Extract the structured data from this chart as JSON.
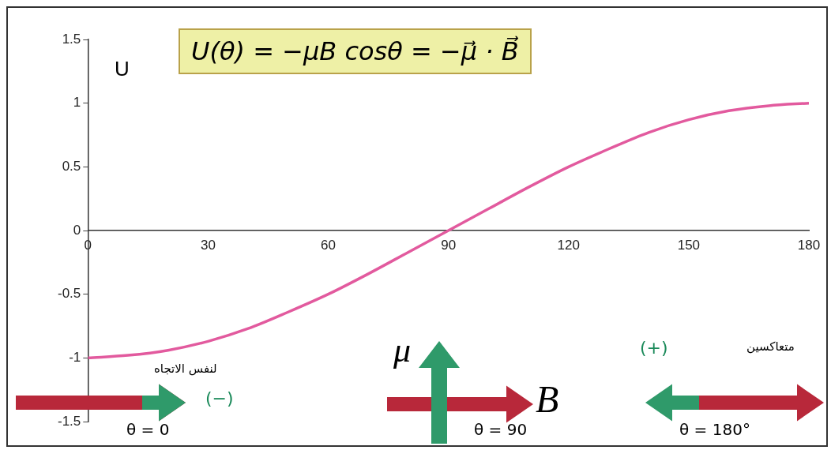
{
  "chart_data": {
    "type": "line",
    "ylabel": "U",
    "x": [
      0,
      10,
      20,
      30,
      40,
      50,
      60,
      70,
      80,
      90,
      100,
      110,
      120,
      130,
      140,
      150,
      160,
      170,
      180
    ],
    "series": [
      {
        "color": "#e25a9e",
        "values": [
          -1,
          -0.98,
          -0.94,
          -0.87,
          -0.77,
          -0.64,
          -0.5,
          -0.34,
          -0.17,
          0,
          0.17,
          0.34,
          0.5,
          0.64,
          0.77,
          0.87,
          0.94,
          0.98,
          1
        ]
      }
    ],
    "xlim": [
      0,
      180
    ],
    "xticks": [
      0,
      30,
      60,
      90,
      120,
      150,
      180
    ],
    "ylim": [
      -1.5,
      1.5
    ],
    "yticks": [
      -1.5,
      -1,
      -0.5,
      0,
      0.5,
      1,
      1.5
    ],
    "grid": false,
    "legend": false,
    "marker": "none",
    "line_style": "solid",
    "annotations": [
      "U(θ) = −μB cosθ = −μ⃗ · B⃗",
      "لنفس الاتجاه",
      "(−)",
      "θ = 0",
      "μ",
      "B",
      "θ = 90",
      "(+)",
      "متعاكسين",
      "θ = 180°"
    ]
  }
}
